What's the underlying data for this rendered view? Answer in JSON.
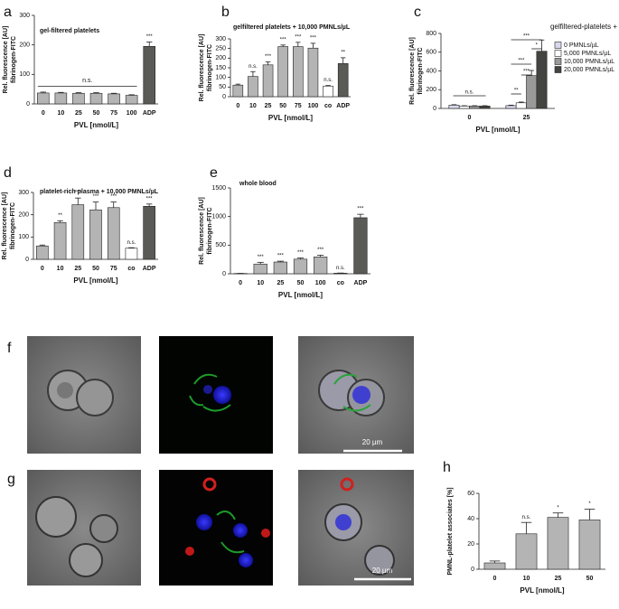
{
  "chart_data": [
    {
      "type": "bar",
      "panel": "a",
      "title": "gel-filtered platelets",
      "ylabel": [
        "Rel. fluorescence [AU]",
        "fibrinogen-FITC"
      ],
      "xlabel": "PVL [nmol/L]",
      "categories": [
        "0",
        "10",
        "25",
        "50",
        "75",
        "100",
        "ADP"
      ],
      "values": [
        37,
        37,
        36,
        36,
        34,
        29,
        195
      ],
      "errors": [
        3,
        2,
        2,
        2,
        2,
        2,
        15
      ],
      "colors": [
        "#b4b4b4",
        "#b4b4b4",
        "#b4b4b4",
        "#b4b4b4",
        "#b4b4b4",
        "#b4b4b4",
        "#5a5a56"
      ],
      "annotations": [
        null,
        null,
        null,
        null,
        null,
        null,
        "***"
      ],
      "bracket_label": "n.s.",
      "ylim": [
        0,
        300
      ],
      "yticks": [
        0,
        100,
        200,
        300
      ]
    },
    {
      "type": "bar",
      "panel": "b",
      "title": "gelfiltered platelets + 10,000 PMNLs/µL",
      "ylabel": [
        "Rel. fluorescence [AU]",
        "fibrinogen-FITC"
      ],
      "xlabel": "PVL [nmol/L]",
      "categories": [
        "0",
        "10",
        "25",
        "50",
        "75",
        "100",
        "co",
        "ADP"
      ],
      "values": [
        60,
        105,
        165,
        260,
        260,
        252,
        55,
        172
      ],
      "errors": [
        5,
        25,
        15,
        8,
        22,
        25,
        3,
        30
      ],
      "colors": [
        "#b4b4b4",
        "#b4b4b4",
        "#b4b4b4",
        "#b4b4b4",
        "#b4b4b4",
        "#b4b4b4",
        "#ffffff",
        "#5a5a56"
      ],
      "annotations": [
        null,
        "n.s.",
        "***",
        "***",
        "***",
        "***",
        "n.s.",
        "**"
      ],
      "ylim": [
        0,
        300
      ],
      "yticks": [
        0,
        50,
        100,
        150,
        200,
        250,
        300
      ]
    },
    {
      "type": "bar",
      "panel": "c",
      "ylabel": [
        "Rel. fluorescence [AU]",
        "fibrinogen-FITC"
      ],
      "xlabel": "PVL [nmol/L]",
      "legend_title": "gelfiltered-platelets +",
      "categories": [
        "0",
        "25"
      ],
      "series": [
        {
          "name": "0 PMNLs/µL",
          "color": "#d8d8ec",
          "values": [
            35,
            30
          ],
          "errors": [
            5,
            5
          ]
        },
        {
          "name": "5,000 PMNLs/µL",
          "color": "#ffffff",
          "values": [
            25,
            60
          ],
          "errors": [
            4,
            8
          ]
        },
        {
          "name": "10,000 PMNLs/µL",
          "color": "#9a9a9a",
          "values": [
            25,
            350
          ],
          "errors": [
            4,
            55
          ]
        },
        {
          "name": "20,000 PMNLs/µL",
          "color": "#444440",
          "values": [
            25,
            610
          ],
          "errors": [
            4,
            120
          ]
        }
      ],
      "annotations": [
        "n.s.",
        "**",
        "***",
        "***",
        "***",
        "*"
      ],
      "ylim": [
        0,
        800
      ],
      "yticks": [
        0,
        200,
        400,
        600,
        800
      ]
    },
    {
      "type": "bar",
      "panel": "d",
      "title": "platelet-rich plasma + 10,000 PMNLs/µL",
      "ylabel": [
        "Rel. fluorescence [AU]",
        "fibrinogen-FITC"
      ],
      "xlabel": "PVL [nmol/L]",
      "categories": [
        "0",
        "10",
        "25",
        "50",
        "75",
        "co",
        "ADP"
      ],
      "values": [
        60,
        165,
        245,
        222,
        232,
        50,
        238
      ],
      "errors": [
        4,
        8,
        30,
        35,
        25,
        2,
        10
      ],
      "colors": [
        "#b4b4b4",
        "#b4b4b4",
        "#b4b4b4",
        "#b4b4b4",
        "#b4b4b4",
        "#ffffff",
        "#5a5a56"
      ],
      "annotations": [
        null,
        "**",
        "***",
        "***",
        "***",
        "n.s.",
        "***"
      ],
      "ylim": [
        0,
        300
      ],
      "yticks": [
        0,
        100,
        200,
        300
      ]
    },
    {
      "type": "bar",
      "panel": "e",
      "title": "whole blood",
      "ylabel": [
        "Rel. fluorescence [AU]",
        "fibrinogen-FITC"
      ],
      "xlabel": "PVL [nmol/L]",
      "categories": [
        "0",
        "10",
        "25",
        "50",
        "100",
        "co",
        "ADP"
      ],
      "values": [
        5,
        170,
        205,
        255,
        295,
        10,
        980
      ],
      "errors": [
        2,
        30,
        15,
        20,
        30,
        3,
        60
      ],
      "colors": [
        "#b4b4b4",
        "#b4b4b4",
        "#b4b4b4",
        "#b4b4b4",
        "#b4b4b4",
        "#ffffff",
        "#5a5a56"
      ],
      "annotations": [
        null,
        "***",
        "***",
        "***",
        "***",
        "n.s.",
        "***"
      ],
      "ylim": [
        0,
        1500
      ],
      "yticks": [
        0,
        500,
        1000,
        1500
      ]
    },
    {
      "type": "bar",
      "panel": "h",
      "ylabel": [
        "PMNL-platelet associates [%]"
      ],
      "xlabel": "PVL [nmol/L]",
      "categories": [
        "0",
        "10",
        "25",
        "50"
      ],
      "values": [
        5,
        28,
        41,
        39
      ],
      "errors": [
        1.5,
        9,
        3.5,
        8.5
      ],
      "colors": [
        "#b4b4b4",
        "#b4b4b4",
        "#b4b4b4",
        "#b4b4b4"
      ],
      "annotations": [
        null,
        "n.s.",
        "*",
        "*"
      ],
      "ylim": [
        0,
        60
      ],
      "yticks": [
        0,
        20,
        40,
        60
      ]
    }
  ],
  "figure": {
    "f": {
      "label": "f",
      "scale_bar": "20 µm"
    },
    "g": {
      "label": "g",
      "scale_bar": "20 µm"
    }
  }
}
